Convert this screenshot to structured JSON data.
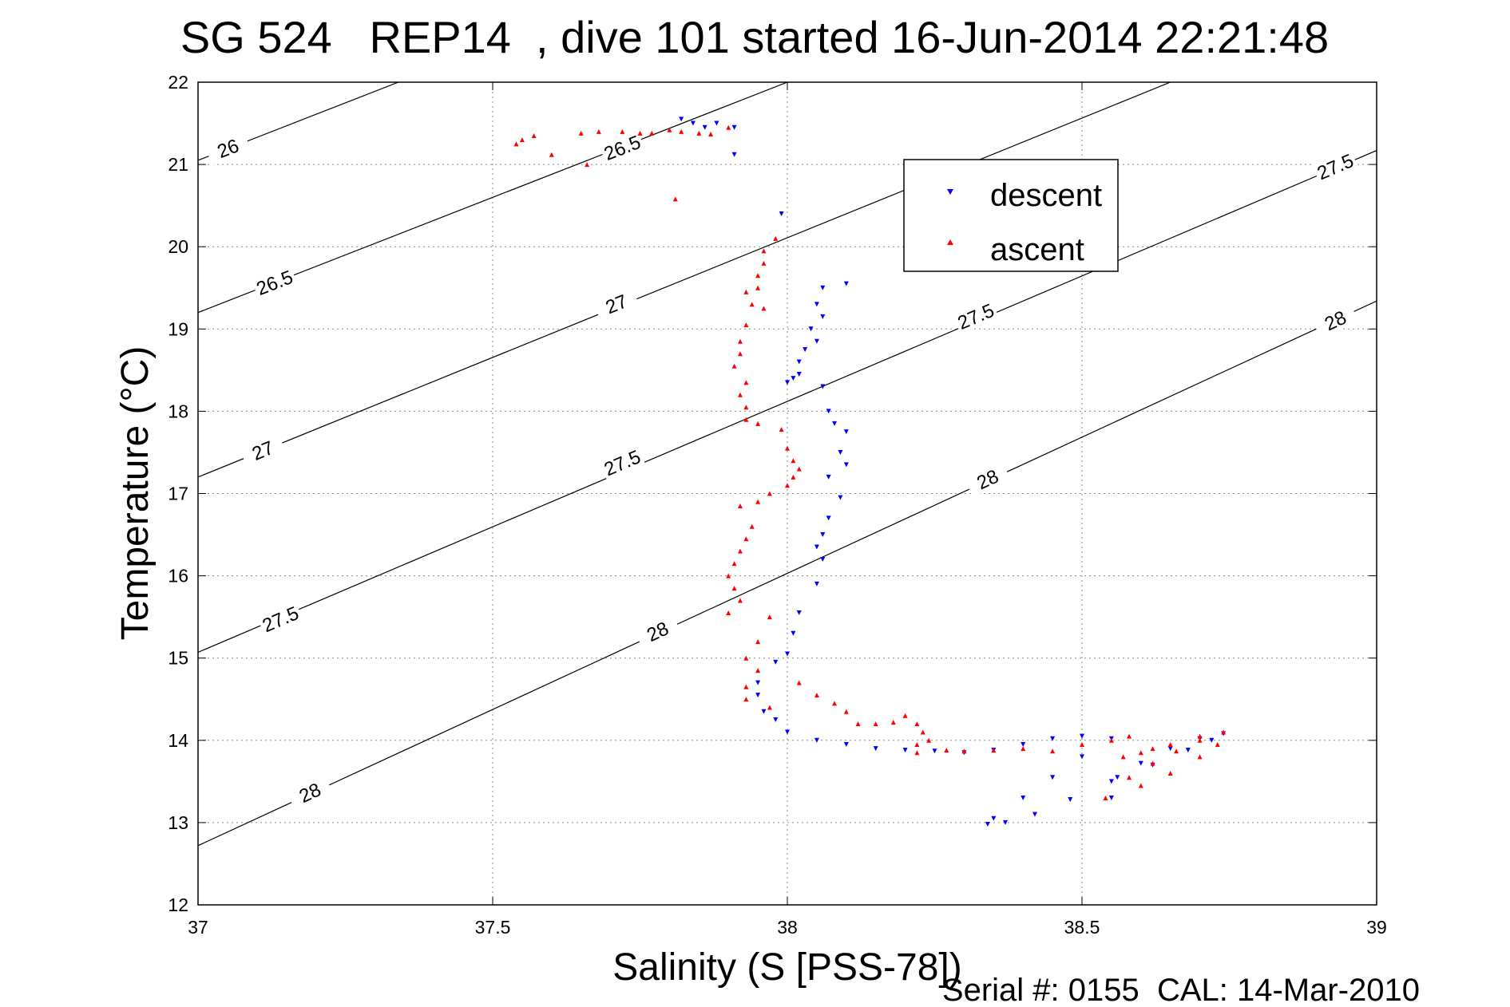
{
  "chart_data": {
    "type": "scatter",
    "title": "SG 524   REP14  , dive 101 started 16-Jun-2014 22:21:48",
    "xlabel": "Salinity (S [PSS-78])",
    "ylabel": "Temperature (°C)",
    "footer": "Serial #: 0155  CAL: 14-Mar-2010",
    "xlim": [
      37,
      39
    ],
    "ylim": [
      12,
      22
    ],
    "x_ticks": [
      "37",
      "37.5",
      "38",
      "38.5",
      "39"
    ],
    "y_ticks": [
      "12",
      "13",
      "14",
      "15",
      "16",
      "17",
      "18",
      "19",
      "20",
      "21",
      "22"
    ],
    "grid": true,
    "legend_position": "top-right",
    "contours": [
      {
        "label": "26",
        "levels": [
          26.0
        ],
        "points": [
          [
            37.0,
            21.05
          ],
          [
            37.34,
            22.0
          ]
        ]
      },
      {
        "label": "26.5",
        "points": [
          [
            37.0,
            19.2
          ],
          [
            38.0,
            22.0
          ]
        ],
        "label_at": [
          [
            37.13,
            19.56
          ],
          [
            37.72,
            21.2
          ]
        ]
      },
      {
        "label": "27",
        "points": [
          [
            37.0,
            17.2
          ],
          [
            38.65,
            22.0
          ]
        ],
        "label_at": [
          [
            37.11,
            17.52
          ],
          [
            37.71,
            19.3
          ]
        ]
      },
      {
        "label": "27.5",
        "points": [
          [
            37.0,
            15.07
          ],
          [
            39.0,
            21.17
          ]
        ],
        "label_at": [
          [
            37.14,
            15.47
          ],
          [
            37.72,
            17.37
          ],
          [
            38.32,
            19.15
          ],
          [
            38.93,
            20.97
          ]
        ]
      },
      {
        "label": "28",
        "points": [
          [
            37.0,
            12.72
          ],
          [
            39.0,
            19.34
          ]
        ],
        "label_at": [
          [
            37.19,
            13.36
          ],
          [
            37.78,
            15.32
          ],
          [
            38.34,
            17.17
          ],
          [
            38.93,
            19.1
          ]
        ]
      }
    ],
    "series": [
      {
        "name": "descent",
        "color": "#0000ff",
        "marker": "triangle-down",
        "points": [
          [
            37.82,
            21.55
          ],
          [
            37.84,
            21.5
          ],
          [
            37.86,
            21.45
          ],
          [
            37.88,
            21.5
          ],
          [
            37.91,
            21.45
          ],
          [
            37.91,
            21.12
          ],
          [
            37.99,
            20.4
          ],
          [
            38.1,
            19.55
          ],
          [
            38.06,
            19.5
          ],
          [
            38.05,
            19.3
          ],
          [
            38.06,
            19.15
          ],
          [
            38.04,
            19.0
          ],
          [
            38.05,
            18.85
          ],
          [
            38.03,
            18.75
          ],
          [
            38.02,
            18.6
          ],
          [
            38.02,
            18.45
          ],
          [
            38.01,
            18.4
          ],
          [
            38.0,
            18.35
          ],
          [
            38.06,
            18.3
          ],
          [
            38.07,
            18.0
          ],
          [
            38.08,
            17.85
          ],
          [
            38.1,
            17.75
          ],
          [
            38.09,
            17.5
          ],
          [
            38.1,
            17.35
          ],
          [
            38.07,
            17.2
          ],
          [
            38.09,
            16.95
          ],
          [
            38.07,
            16.7
          ],
          [
            38.06,
            16.5
          ],
          [
            38.05,
            16.35
          ],
          [
            38.06,
            16.2
          ],
          [
            38.05,
            15.9
          ],
          [
            38.02,
            15.55
          ],
          [
            38.01,
            15.3
          ],
          [
            38.0,
            15.05
          ],
          [
            37.98,
            14.95
          ],
          [
            37.95,
            14.7
          ],
          [
            37.95,
            14.55
          ],
          [
            37.96,
            14.35
          ],
          [
            37.98,
            14.25
          ],
          [
            38.0,
            14.1
          ],
          [
            38.05,
            14.0
          ],
          [
            38.1,
            13.95
          ],
          [
            38.15,
            13.9
          ],
          [
            38.2,
            13.88
          ],
          [
            38.25,
            13.87
          ],
          [
            38.3,
            13.85
          ],
          [
            38.35,
            13.88
          ],
          [
            38.4,
            13.95
          ],
          [
            38.45,
            14.02
          ],
          [
            38.5,
            14.05
          ],
          [
            38.55,
            14.02
          ],
          [
            38.5,
            13.8
          ],
          [
            38.45,
            13.55
          ],
          [
            38.4,
            13.3
          ],
          [
            38.35,
            13.05
          ],
          [
            38.34,
            12.98
          ],
          [
            38.37,
            13.0
          ],
          [
            38.42,
            13.1
          ],
          [
            38.48,
            13.28
          ],
          [
            38.55,
            13.5
          ],
          [
            38.62,
            13.7
          ],
          [
            38.68,
            13.88
          ],
          [
            38.72,
            14.0
          ],
          [
            38.74,
            14.08
          ],
          [
            38.7,
            14.02
          ],
          [
            38.65,
            13.9
          ],
          [
            38.6,
            13.72
          ],
          [
            38.56,
            13.55
          ],
          [
            38.55,
            13.3
          ]
        ]
      },
      {
        "name": "ascent",
        "color": "#ff0000",
        "marker": "triangle-up",
        "points": [
          [
            37.54,
            21.25
          ],
          [
            37.55,
            21.3
          ],
          [
            37.57,
            21.35
          ],
          [
            37.6,
            21.12
          ],
          [
            37.65,
            21.38
          ],
          [
            37.66,
            21.0
          ],
          [
            37.68,
            21.4
          ],
          [
            37.72,
            21.4
          ],
          [
            37.75,
            21.38
          ],
          [
            37.77,
            21.38
          ],
          [
            37.8,
            21.42
          ],
          [
            37.82,
            21.4
          ],
          [
            37.85,
            21.38
          ],
          [
            37.87,
            21.37
          ],
          [
            37.9,
            21.45
          ],
          [
            37.81,
            20.58
          ],
          [
            37.98,
            20.1
          ],
          [
            37.96,
            19.95
          ],
          [
            37.96,
            19.8
          ],
          [
            37.95,
            19.65
          ],
          [
            37.95,
            19.5
          ],
          [
            37.93,
            19.45
          ],
          [
            37.94,
            19.3
          ],
          [
            37.96,
            19.25
          ],
          [
            37.93,
            19.05
          ],
          [
            37.92,
            18.85
          ],
          [
            37.92,
            18.7
          ],
          [
            37.91,
            18.55
          ],
          [
            37.93,
            18.35
          ],
          [
            37.92,
            18.2
          ],
          [
            37.93,
            18.05
          ],
          [
            37.93,
            17.9
          ],
          [
            37.95,
            17.85
          ],
          [
            37.99,
            17.78
          ],
          [
            38.0,
            17.55
          ],
          [
            38.01,
            17.4
          ],
          [
            38.02,
            17.3
          ],
          [
            38.01,
            17.2
          ],
          [
            38.0,
            17.1
          ],
          [
            37.97,
            17.0
          ],
          [
            37.95,
            16.9
          ],
          [
            37.92,
            16.85
          ],
          [
            37.94,
            16.6
          ],
          [
            37.93,
            16.45
          ],
          [
            37.92,
            16.3
          ],
          [
            37.91,
            16.15
          ],
          [
            37.9,
            16.0
          ],
          [
            37.91,
            15.85
          ],
          [
            37.92,
            15.7
          ],
          [
            37.9,
            15.55
          ],
          [
            37.97,
            15.5
          ],
          [
            37.95,
            15.2
          ],
          [
            37.93,
            15.0
          ],
          [
            37.95,
            14.85
          ],
          [
            37.93,
            14.65
          ],
          [
            37.93,
            14.5
          ],
          [
            37.97,
            14.4
          ],
          [
            38.02,
            14.7
          ],
          [
            38.05,
            14.55
          ],
          [
            38.08,
            14.45
          ],
          [
            38.1,
            14.35
          ],
          [
            38.12,
            14.2
          ],
          [
            38.15,
            14.2
          ],
          [
            38.18,
            14.22
          ],
          [
            38.2,
            14.3
          ],
          [
            38.22,
            14.2
          ],
          [
            38.23,
            14.1
          ],
          [
            38.24,
            14.0
          ],
          [
            38.22,
            13.95
          ],
          [
            38.22,
            13.85
          ],
          [
            38.27,
            13.88
          ],
          [
            38.3,
            13.87
          ],
          [
            38.35,
            13.88
          ],
          [
            38.4,
            13.9
          ],
          [
            38.45,
            13.87
          ],
          [
            38.5,
            13.95
          ],
          [
            38.55,
            14.0
          ],
          [
            38.58,
            14.05
          ],
          [
            38.57,
            13.8
          ],
          [
            38.6,
            13.85
          ],
          [
            38.62,
            13.9
          ],
          [
            38.65,
            13.95
          ],
          [
            38.7,
            14.05
          ],
          [
            38.74,
            14.1
          ],
          [
            38.7,
            14.0
          ],
          [
            38.66,
            13.87
          ],
          [
            38.62,
            13.72
          ],
          [
            38.58,
            13.55
          ],
          [
            38.54,
            13.3
          ],
          [
            38.6,
            13.45
          ],
          [
            38.65,
            13.6
          ],
          [
            38.7,
            13.8
          ],
          [
            38.73,
            13.95
          ]
        ]
      }
    ]
  }
}
